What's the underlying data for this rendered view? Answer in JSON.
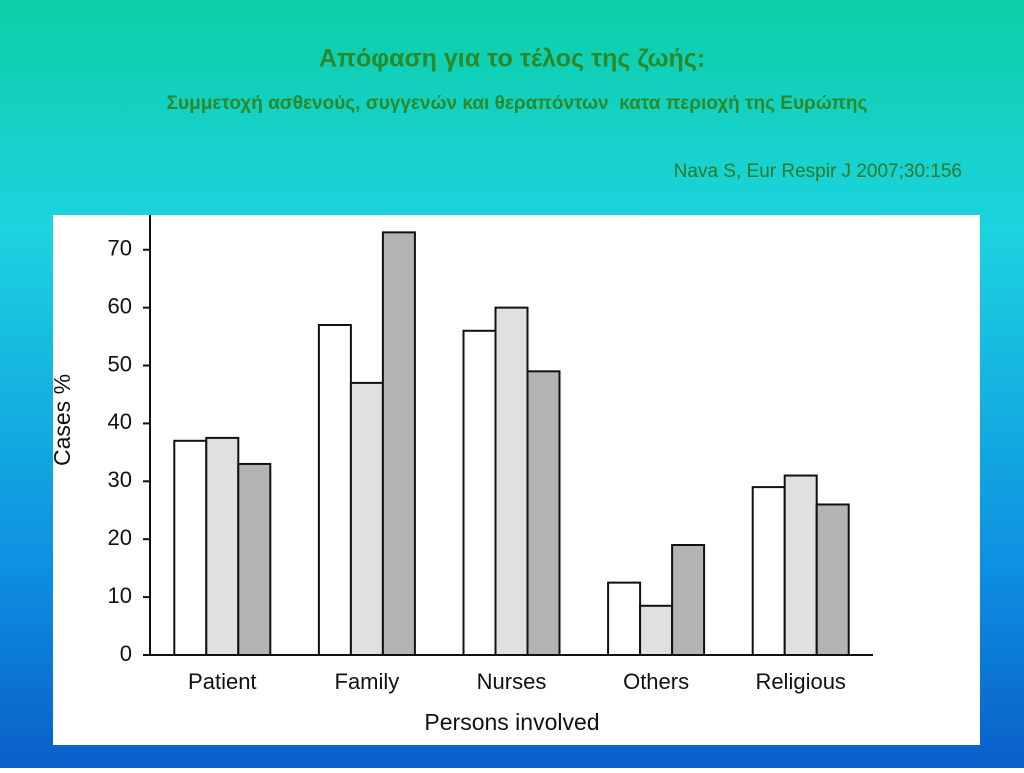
{
  "chart_data": {
    "type": "bar",
    "title": "Απόφαση για το τέλος της ζωής:",
    "subtitle": "Συμμετοχή ασθενούς, συγγενών και θεραπόντων  κατα περιοχή της Ευρώπης",
    "source": "Nava S, Eur Respir J 2007;30:156",
    "x_label": "Persons involved",
    "y_label": "Cases %",
    "categories": [
      "Patient",
      "Family",
      "Nurses",
      "Others",
      "Religious"
    ],
    "series": [
      {
        "color": "#ffffff",
        "values": [
          37,
          57,
          56,
          12.5,
          29
        ]
      },
      {
        "color": "#e0e0e0",
        "values": [
          37.5,
          47,
          60,
          8.5,
          31
        ]
      },
      {
        "color": "#b3b3b3",
        "values": [
          33,
          73,
          49,
          19,
          26
        ]
      }
    ],
    "ylim": [
      0,
      76
    ],
    "yticks": [
      0,
      10,
      20,
      30,
      40,
      50,
      60,
      70
    ],
    "grid": false
  }
}
